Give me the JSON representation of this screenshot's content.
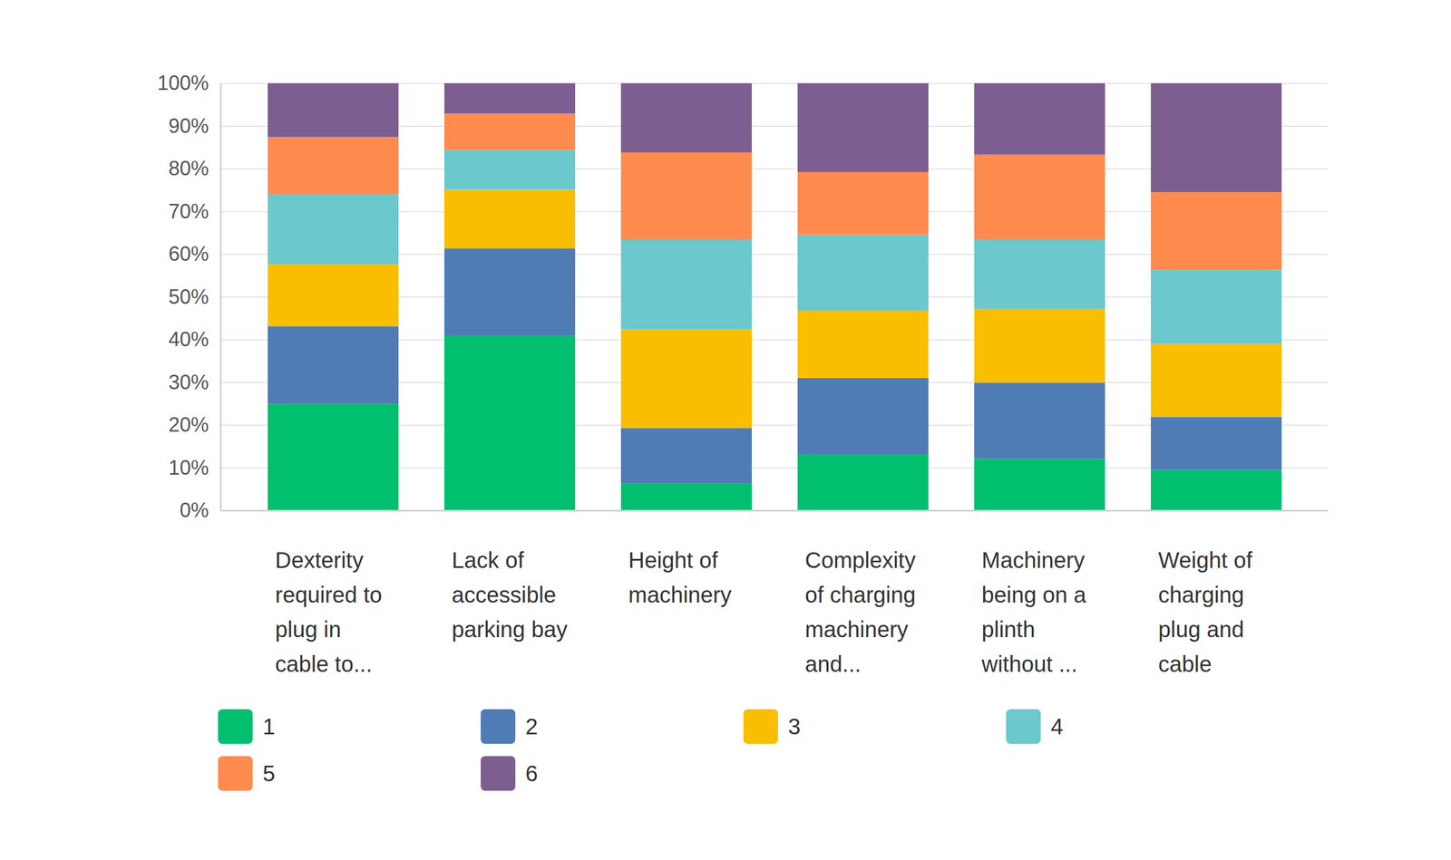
{
  "chart_data": {
    "type": "bar",
    "stacked": true,
    "categories": [
      "Dexterity required to plug in cable to...",
      "Lack of accessible parking bay",
      "Height of machinery",
      "Complexity of charging machinery and...",
      "Machinery being on a plinth without ...",
      "Weight of charging plug and cable"
    ],
    "series": [
      {
        "name": "1",
        "color": "#00bf6f",
        "values": [
          24.9,
          40.9,
          6.3,
          13.2,
          12.1,
          9.5
        ]
      },
      {
        "name": "2",
        "color": "#507cb6",
        "values": [
          18.2,
          20.4,
          13.0,
          17.8,
          17.8,
          12.4
        ]
      },
      {
        "name": "3",
        "color": "#f9be00",
        "values": [
          14.5,
          13.8,
          23.1,
          15.8,
          17.3,
          17.1
        ]
      },
      {
        "name": "4",
        "color": "#6bc8cd",
        "values": [
          16.4,
          9.3,
          21.0,
          17.7,
          16.2,
          17.3
        ]
      },
      {
        "name": "5",
        "color": "#ff8b4f",
        "values": [
          13.4,
          8.5,
          20.4,
          14.7,
          19.9,
          18.2
        ]
      },
      {
        "name": "6",
        "color": "#7d5e90",
        "values": [
          12.6,
          7.1,
          16.2,
          20.8,
          16.7,
          25.5
        ]
      }
    ],
    "ylim": [
      0,
      100
    ],
    "yticks": [
      {
        "value": 0,
        "label": "0%"
      },
      {
        "value": 10,
        "label": "10%"
      },
      {
        "value": 20,
        "label": "20%"
      },
      {
        "value": 30,
        "label": "30%"
      },
      {
        "value": 40,
        "label": "40%"
      },
      {
        "value": 50,
        "label": "50%"
      },
      {
        "value": 60,
        "label": "60%"
      },
      {
        "value": 70,
        "label": "70%"
      },
      {
        "value": 80,
        "label": "80%"
      },
      {
        "value": 90,
        "label": "90%"
      },
      {
        "value": 100,
        "label": "100%"
      }
    ],
    "grid": true,
    "legend": "bottom"
  }
}
